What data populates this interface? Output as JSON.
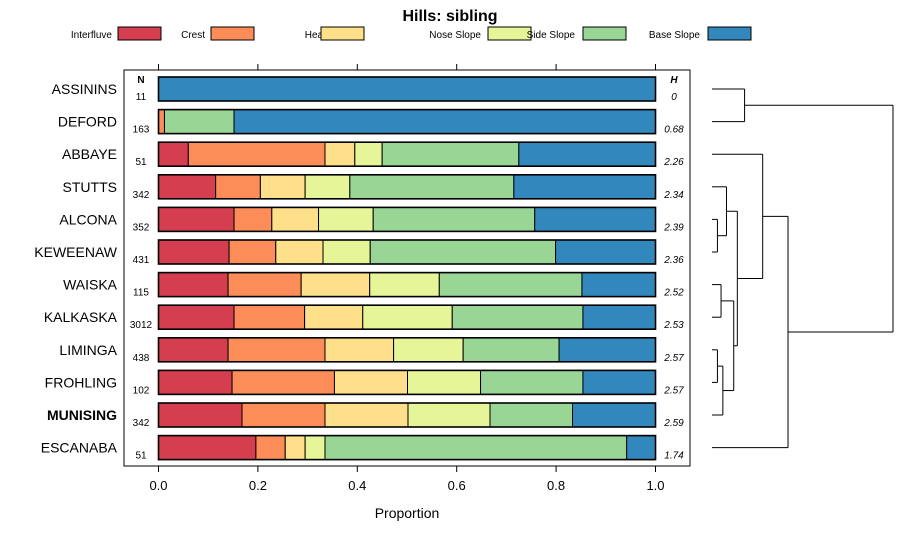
{
  "chart_data": {
    "type": "bar",
    "subtype": "stacked-horizontal-proportion",
    "title": "Hills: sibling",
    "xlabel": "Proportion",
    "ylabel": "",
    "xlim": [
      0,
      1
    ],
    "x_ticks": [
      "0.0",
      "0.2",
      "0.4",
      "0.6",
      "0.8",
      "1.0"
    ],
    "n_header": "N",
    "h_header": "H",
    "legend": [
      {
        "name": "Interfluve",
        "color": "#d53e4f"
      },
      {
        "name": "Crest",
        "color": "#fc8d59"
      },
      {
        "name": "Head Slope",
        "color": "#fee08b"
      },
      {
        "name": "Nose Slope",
        "color": "#e6f598"
      },
      {
        "name": "Side Slope",
        "color": "#99d594"
      },
      {
        "name": "Base Slope",
        "color": "#3288bd"
      }
    ],
    "rows": [
      {
        "name": "ASSININS",
        "n": "11",
        "h": "0",
        "bold": false,
        "values": [
          0,
          0,
          0,
          0,
          0,
          1.0
        ]
      },
      {
        "name": "DEFORD",
        "n": "163",
        "h": "0.68",
        "bold": false,
        "values": [
          0,
          0.012,
          0,
          0,
          0.14,
          0.848
        ]
      },
      {
        "name": "ABBAYE",
        "n": "51",
        "h": "2.26",
        "bold": false,
        "values": [
          0.06,
          0.275,
          0.06,
          0.055,
          0.275,
          0.275
        ]
      },
      {
        "name": "STUTTS",
        "n": "342",
        "h": "2.34",
        "bold": false,
        "values": [
          0.115,
          0.09,
          0.09,
          0.09,
          0.33,
          0.285
        ]
      },
      {
        "name": "ALCONA",
        "n": "352",
        "h": "2.39",
        "bold": false,
        "values": [
          0.152,
          0.076,
          0.094,
          0.11,
          0.325,
          0.243
        ]
      },
      {
        "name": "KEWEENAW",
        "n": "431",
        "h": "2.36",
        "bold": false,
        "values": [
          0.142,
          0.094,
          0.095,
          0.095,
          0.373,
          0.201
        ]
      },
      {
        "name": "WAISKA",
        "n": "115",
        "h": "2.52",
        "bold": false,
        "values": [
          0.14,
          0.147,
          0.138,
          0.14,
          0.287,
          0.148
        ]
      },
      {
        "name": "KALKASKA",
        "n": "3012",
        "h": "2.53",
        "bold": false,
        "values": [
          0.152,
          0.142,
          0.117,
          0.18,
          0.263,
          0.146
        ]
      },
      {
        "name": "LIMINGA",
        "n": "438",
        "h": "2.57",
        "bold": false,
        "values": [
          0.14,
          0.195,
          0.138,
          0.14,
          0.193,
          0.194
        ]
      },
      {
        "name": "FROHLING",
        "n": "102",
        "h": "2.57",
        "bold": false,
        "values": [
          0.148,
          0.206,
          0.147,
          0.147,
          0.206,
          0.146
        ]
      },
      {
        "name": "MUNISING",
        "n": "342",
        "h": "2.59",
        "bold": true,
        "values": [
          0.168,
          0.167,
          0.167,
          0.165,
          0.166,
          0.167
        ]
      },
      {
        "name": "ESCANABA",
        "n": "51",
        "h": "1.74",
        "bold": false,
        "values": [
          0.196,
          0.059,
          0.04,
          0.04,
          0.607,
          0.058
        ]
      }
    ],
    "dendrogram": {
      "method": "hierarchical clustering",
      "leaf_order": [
        "ASSININS",
        "DEFORD",
        "ABBAYE",
        "STUTTS",
        "ALCONA",
        "KEWEENAW",
        "WAISKA",
        "KALKASKA",
        "LIMINGA",
        "FROHLING",
        "MUNISING",
        "ESCANABA"
      ],
      "merges": [
        {
          "a": "ALCONA",
          "b": "KEWEENAW",
          "height": 0.03
        },
        {
          "a": "LIMINGA",
          "b": "FROHLING",
          "height": 0.03
        },
        {
          "a": "WAISKA",
          "b": "KALKASKA",
          "height": 0.05
        },
        {
          "a": "L+F",
          "b": "MUNISING",
          "height": 0.06
        },
        {
          "a": "STUTTS",
          "b": "A+K",
          "height": 0.08
        },
        {
          "a": "W+K",
          "b": "L+F+M",
          "height": 0.12
        },
        {
          "a": "ASSININS",
          "b": "DEFORD",
          "height": 0.18
        },
        {
          "a": "S+A+K",
          "b": "W+K+L+F+M",
          "height": 0.14
        },
        {
          "a": "ABBAYE",
          "b": "group1",
          "height": 0.28
        },
        {
          "a": "group2",
          "b": "ESCANABA",
          "height": 0.42
        },
        {
          "a": "A+D",
          "b": "group3",
          "height": 1.0
        }
      ]
    }
  }
}
